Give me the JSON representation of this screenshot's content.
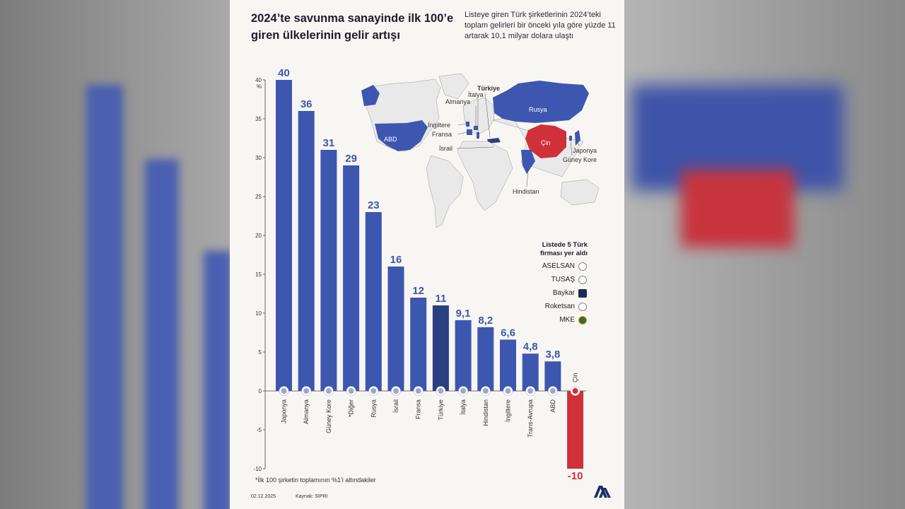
{
  "title": "2024’te savunma sanayinde ilk 100’e giren ülkelerinin gelir artışı",
  "subtitle": "Listeye giren Türk şirketlerinin 2024’teki toplam gelirleri bir önceki yıla göre yüzde 11 artarak 10,1 milyar dolara ulaştı",
  "chart_data": {
    "type": "bar",
    "title": "2024’te savunma sanayinde ilk 100’e giren ülkelerinin gelir artışı",
    "ylabel": "%",
    "ylim": [
      -10,
      40
    ],
    "yticks": [
      40,
      35,
      30,
      25,
      20,
      15,
      10,
      5,
      0,
      -5,
      -10
    ],
    "categories": [
      "Japonya",
      "Almanya",
      "Güney Kore",
      "*Diğer",
      "Rusya",
      "İsrail",
      "Fransa",
      "Türkiye",
      "İtalya",
      "Hindistan",
      "İngiltere",
      "Trans-Avrupa",
      "ABD",
      "Çin"
    ],
    "values": [
      40,
      36,
      31,
      29,
      23,
      16,
      12,
      11,
      9.1,
      8.2,
      6.6,
      4.8,
      3.8,
      -10
    ],
    "value_labels": [
      "40",
      "36",
      "31",
      "29",
      "23",
      "16",
      "12",
      "11",
      "9,1",
      "8,2",
      "6,6",
      "4,8",
      "3,8",
      "-10"
    ],
    "highlight": "Türkiye",
    "colors": {
      "bar": "#3d57b0",
      "highlight": "#2a3f80",
      "negative": "#d0303a"
    }
  },
  "map": {
    "labels": [
      "Türkiye",
      "İtalya",
      "Almanya",
      "İngiltere",
      "Fransa",
      "İsrail",
      "ABD",
      "Rusya",
      "Çin",
      "Japonya",
      "Güney Kore",
      "Hindistan"
    ]
  },
  "firms": {
    "title": "Listede 5 Türk firması yer aldı",
    "items": [
      "ASELSAN",
      "TUSAŞ",
      "Baykar",
      "Roketsan",
      "MKE"
    ]
  },
  "note": "*İlk 100 şirketin toplamının %1'i altındakiler",
  "footer": {
    "date": "02.12.2025",
    "source": "Kaynak: SIPRI"
  }
}
